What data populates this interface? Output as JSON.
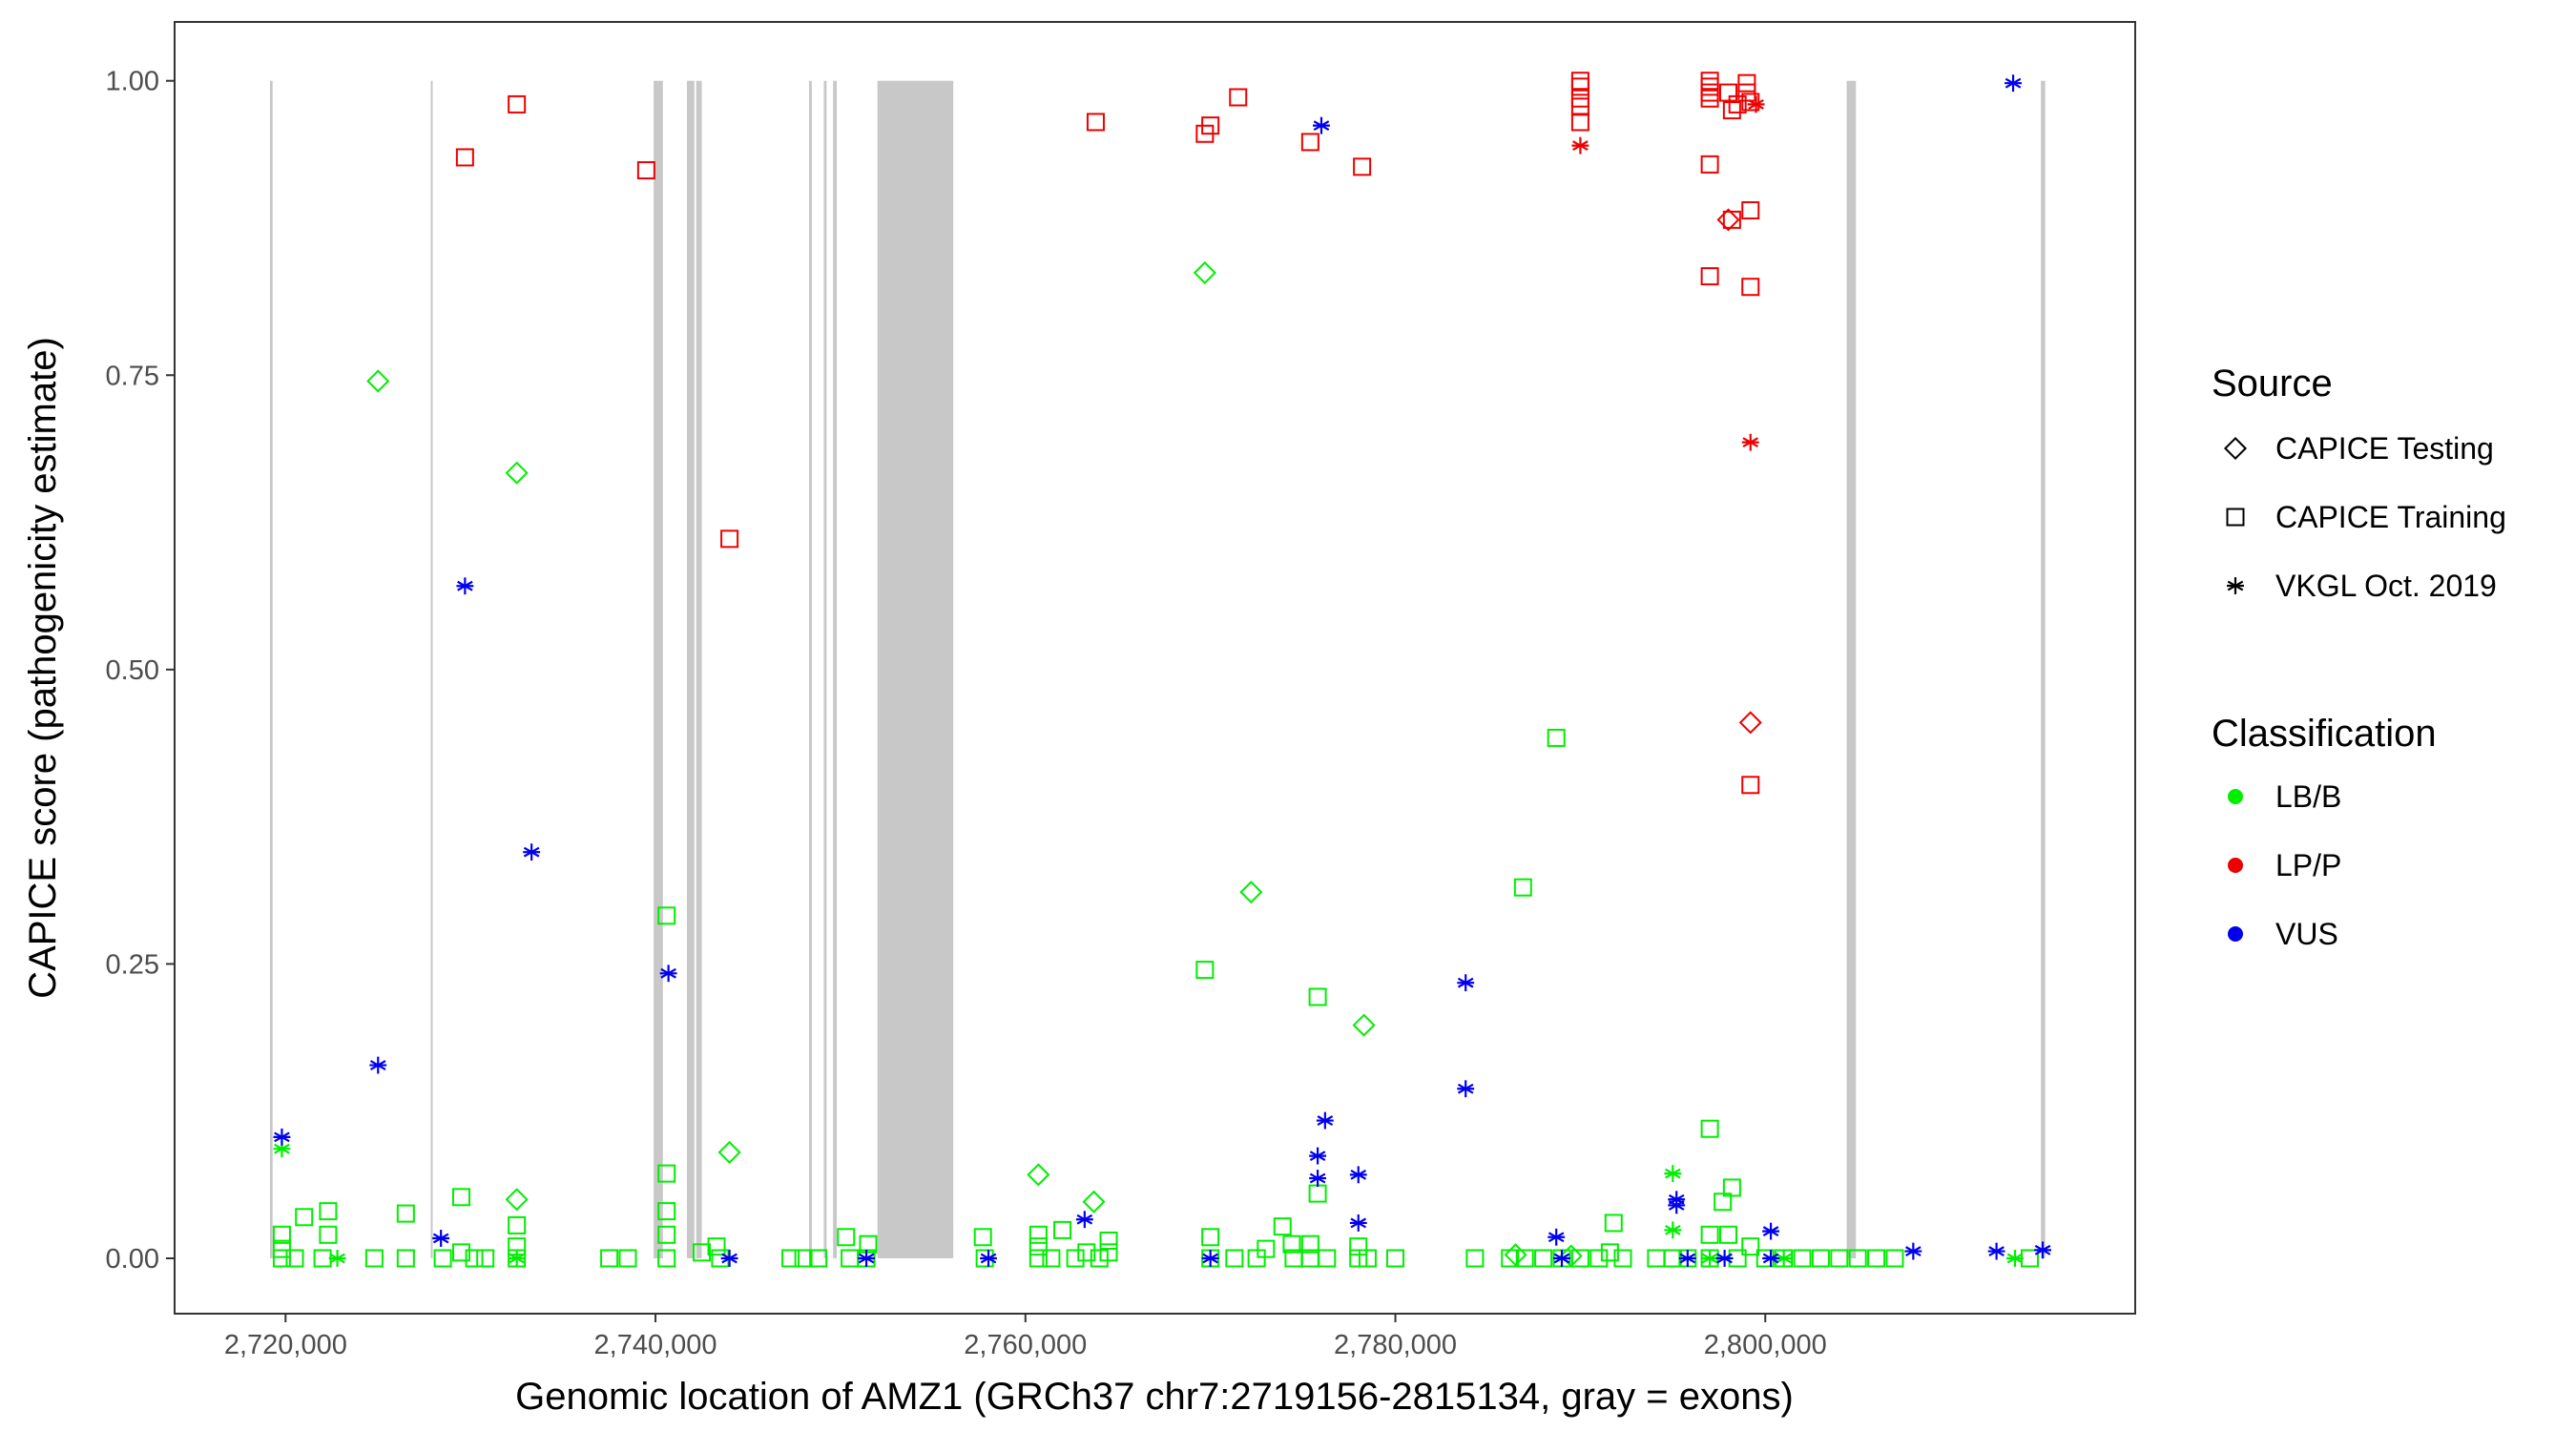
{
  "chart_data": {
    "type": "scatter",
    "title": "",
    "xlabel": "Genomic location of AMZ1 (GRCh37 chr7:2719156-2815134, gray = exons)",
    "ylabel": "CAPICE score (pathogenicity estimate)",
    "xlim": [
      2714000,
      2820000
    ],
    "ylim": [
      -0.047,
      1.05
    ],
    "x_ticks": [
      2720000,
      2740000,
      2760000,
      2780000,
      2800000
    ],
    "x_tick_labels": [
      "2,720,000",
      "2,740,000",
      "2,760,000",
      "2,780,000",
      "2,800,000"
    ],
    "y_ticks": [
      0,
      0.25,
      0.5,
      0.75,
      1
    ],
    "y_tick_labels": [
      "0.00",
      "0.25",
      "0.50",
      "0.75",
      "1.00"
    ],
    "grid": false,
    "exons_gray": [
      [
        2719156,
        2719300
      ],
      [
        2727850,
        2727950
      ],
      [
        2739900,
        2740400
      ],
      [
        2741700,
        2742100
      ],
      [
        2742200,
        2742500
      ],
      [
        2748300,
        2748450
      ],
      [
        2749100,
        2749250
      ],
      [
        2749600,
        2749800
      ],
      [
        2752000,
        2756100
      ],
      [
        2804400,
        2804900
      ],
      [
        2814900,
        2815134
      ]
    ],
    "legend": {
      "placement": "right",
      "source_title": "Source",
      "source_items": [
        {
          "label": "CAPICE Testing",
          "shape": "diamond"
        },
        {
          "label": "CAPICE Training",
          "shape": "square"
        },
        {
          "label": "VKGL Oct. 2019",
          "shape": "asterisk"
        }
      ],
      "class_title": "Classification",
      "class_items": [
        {
          "label": "LB/B",
          "color": "#00ee00"
        },
        {
          "label": "LP/P",
          "color": "#ee0000"
        },
        {
          "label": "VUS",
          "color": "#0000ee"
        }
      ]
    },
    "colors": {
      "LB/B": "#00ee00",
      "LP/P": "#ee0000",
      "VUS": "#0000ee"
    },
    "points": {
      "testing_lbb": [
        [
          2725000,
          0.745
        ],
        [
          2732500,
          0.667
        ],
        [
          2769700,
          0.837
        ],
        [
          2772200,
          0.311
        ],
        [
          2778300,
          0.198
        ],
        [
          2744000,
          0.09
        ],
        [
          2760700,
          0.071
        ],
        [
          2732500,
          0.05
        ],
        [
          2763700,
          0.048
        ],
        [
          2786500,
          0.003
        ],
        [
          2789500,
          0.002
        ]
      ],
      "testing_lpp": [
        [
          2799200,
          0.455
        ],
        [
          2798000,
          0.882
        ]
      ],
      "training_lbb": [
        [
          2719800,
          0.0
        ],
        [
          2719800,
          0.008
        ],
        [
          2719800,
          0.02
        ],
        [
          2720500,
          0.0
        ],
        [
          2721000,
          0.035
        ],
        [
          2722000,
          0.0
        ],
        [
          2722300,
          0.02
        ],
        [
          2722300,
          0.04
        ],
        [
          2724800,
          0.0
        ],
        [
          2726500,
          0.0
        ],
        [
          2726500,
          0.038
        ],
        [
          2728500,
          0.0
        ],
        [
          2729500,
          0.052
        ],
        [
          2729500,
          0.005
        ],
        [
          2730200,
          0.0
        ],
        [
          2730800,
          0.0
        ],
        [
          2732500,
          0.028
        ],
        [
          2732500,
          0.01
        ],
        [
          2732500,
          0.0
        ],
        [
          2737500,
          0.0
        ],
        [
          2738500,
          0.0
        ],
        [
          2740600,
          0.291
        ],
        [
          2740600,
          0.072
        ],
        [
          2740600,
          0.04
        ],
        [
          2740600,
          0.02
        ],
        [
          2740600,
          0.0
        ],
        [
          2742500,
          0.005
        ],
        [
          2743300,
          0.01
        ],
        [
          2743500,
          0.0
        ],
        [
          2747300,
          0.0
        ],
        [
          2748000,
          0.0
        ],
        [
          2748800,
          0.0
        ],
        [
          2750300,
          0.018
        ],
        [
          2750500,
          0.0
        ],
        [
          2751400,
          0.0
        ],
        [
          2751500,
          0.012
        ],
        [
          2757700,
          0.018
        ],
        [
          2757800,
          0.0
        ],
        [
          2760700,
          0.02
        ],
        [
          2760700,
          0.01
        ],
        [
          2760700,
          0.0
        ],
        [
          2761400,
          0.0
        ],
        [
          2762000,
          0.024
        ],
        [
          2762700,
          0.0
        ],
        [
          2763300,
          0.005
        ],
        [
          2764000,
          0.0
        ],
        [
          2764500,
          0.015
        ],
        [
          2764500,
          0.005
        ],
        [
          2769700,
          0.245
        ],
        [
          2770000,
          0.018
        ],
        [
          2770000,
          0.0
        ],
        [
          2771300,
          0.0
        ],
        [
          2772500,
          0.0
        ],
        [
          2773000,
          0.008
        ],
        [
          2773900,
          0.027
        ],
        [
          2774400,
          0.012
        ],
        [
          2774500,
          0.0
        ],
        [
          2775400,
          0.0
        ],
        [
          2775400,
          0.012
        ],
        [
          2775800,
          0.222
        ],
        [
          2775800,
          0.055
        ],
        [
          2776300,
          0.0
        ],
        [
          2778000,
          0.0
        ],
        [
          2778000,
          0.01
        ],
        [
          2778500,
          0.0
        ],
        [
          2780000,
          0.0
        ],
        [
          2784300,
          0.0
        ],
        [
          2786200,
          0.0
        ],
        [
          2786900,
          0.315
        ],
        [
          2787000,
          0.0
        ],
        [
          2788000,
          0.0
        ],
        [
          2788700,
          0.442
        ],
        [
          2789000,
          0.0
        ],
        [
          2790000,
          0.0
        ],
        [
          2791000,
          0.0
        ],
        [
          2791600,
          0.005
        ],
        [
          2791800,
          0.03
        ],
        [
          2792300,
          0.0
        ],
        [
          2794100,
          0.0
        ],
        [
          2795000,
          0.0
        ],
        [
          2795800,
          0.0
        ],
        [
          2797000,
          0.11
        ],
        [
          2797000,
          0.02
        ],
        [
          2797000,
          0.0
        ],
        [
          2797700,
          0.048
        ],
        [
          2798000,
          0.02
        ],
        [
          2798200,
          0.06
        ],
        [
          2798500,
          0.0
        ],
        [
          2799200,
          0.01
        ],
        [
          2800000,
          0.0
        ],
        [
          2801000,
          0.0
        ],
        [
          2802000,
          0.0
        ],
        [
          2803000,
          0.0
        ],
        [
          2804000,
          0.0
        ],
        [
          2805000,
          0.0
        ],
        [
          2806000,
          0.0
        ],
        [
          2807000,
          0.0
        ],
        [
          2814300,
          0.0
        ]
      ],
      "training_lpp": [
        [
          2729700,
          0.935
        ],
        [
          2732500,
          0.98
        ],
        [
          2739500,
          0.924
        ],
        [
          2744000,
          0.611
        ],
        [
          2763800,
          0.965
        ],
        [
          2769700,
          0.955
        ],
        [
          2770000,
          0.962
        ],
        [
          2771500,
          0.986
        ],
        [
          2775400,
          0.948
        ],
        [
          2778200,
          0.927
        ],
        [
          2790000,
          1.0
        ],
        [
          2790000,
          0.995
        ],
        [
          2790000,
          0.985
        ],
        [
          2790000,
          0.978
        ],
        [
          2790000,
          0.965
        ],
        [
          2797000,
          1.0
        ],
        [
          2797000,
          0.995
        ],
        [
          2797000,
          0.99
        ],
        [
          2797000,
          0.985
        ],
        [
          2797000,
          0.929
        ],
        [
          2797000,
          0.834
        ],
        [
          2798000,
          0.99
        ],
        [
          2798200,
          0.975
        ],
        [
          2798500,
          0.98
        ],
        [
          2799000,
          0.998
        ],
        [
          2799000,
          0.99
        ],
        [
          2799200,
          0.982
        ],
        [
          2799200,
          0.89
        ],
        [
          2799200,
          0.825
        ],
        [
          2799200,
          0.402
        ],
        [
          2798200,
          0.882
        ]
      ],
      "vkgl_lbb": [
        [
          2719800,
          0.093
        ],
        [
          2722800,
          0.0
        ],
        [
          2732500,
          0.0
        ],
        [
          2795000,
          0.072
        ],
        [
          2795000,
          0.024
        ],
        [
          2797000,
          0.0
        ],
        [
          2801000,
          0.0
        ],
        [
          2813500,
          0.0
        ]
      ],
      "vkgl_lpp": [
        [
          2790000,
          0.945
        ],
        [
          2799200,
          0.693
        ],
        [
          2799500,
          0.98
        ]
      ],
      "vkgl_vus": [
        [
          2719800,
          0.103
        ],
        [
          2725000,
          0.164
        ],
        [
          2728400,
          0.017
        ],
        [
          2729700,
          0.571
        ],
        [
          2733300,
          0.345
        ],
        [
          2740700,
          0.242
        ],
        [
          2744000,
          0.0
        ],
        [
          2751400,
          0.0
        ],
        [
          2758000,
          0.0
        ],
        [
          2763200,
          0.033
        ],
        [
          2770000,
          0.0
        ],
        [
          2775800,
          0.087
        ],
        [
          2775800,
          0.068
        ],
        [
          2776000,
          0.962
        ],
        [
          2776200,
          0.117
        ],
        [
          2778000,
          0.071
        ],
        [
          2778000,
          0.03
        ],
        [
          2783800,
          0.234
        ],
        [
          2783800,
          0.144
        ],
        [
          2788700,
          0.018
        ],
        [
          2789000,
          0.0
        ],
        [
          2795200,
          0.05
        ],
        [
          2795200,
          0.045
        ],
        [
          2795800,
          0.0
        ],
        [
          2797800,
          0.0
        ],
        [
          2800300,
          0.023
        ],
        [
          2800300,
          0.0
        ],
        [
          2808000,
          0.006
        ],
        [
          2812500,
          0.006
        ],
        [
          2813400,
          0.998
        ],
        [
          2815000,
          0.007
        ]
      ]
    }
  }
}
